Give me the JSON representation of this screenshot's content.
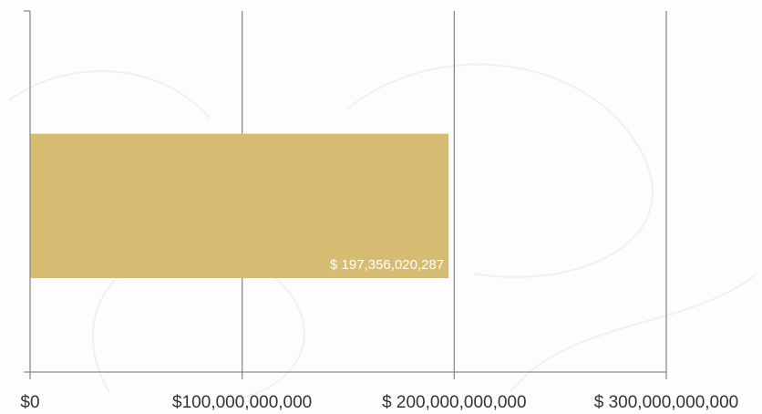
{
  "chart_data": {
    "type": "bar",
    "orientation": "horizontal",
    "categories": [
      ""
    ],
    "series": [
      {
        "values": [
          197356020287
        ],
        "color": "#d6bb72"
      }
    ],
    "data_labels": [
      "$ 197,356,020,287"
    ],
    "x_ticks": [
      {
        "value": 0,
        "label": "$0"
      },
      {
        "value": 100000000000,
        "label": "$100,000,000,000"
      },
      {
        "value": 200000000000,
        "label": "$ 200,000,000,000"
      },
      {
        "value": 300000000000,
        "label": "$ 300,000,000,000"
      }
    ],
    "xlim": [
      0,
      300000000000
    ],
    "grid": true,
    "legend": "none",
    "title": "",
    "xlabel": "",
    "ylabel": ""
  }
}
